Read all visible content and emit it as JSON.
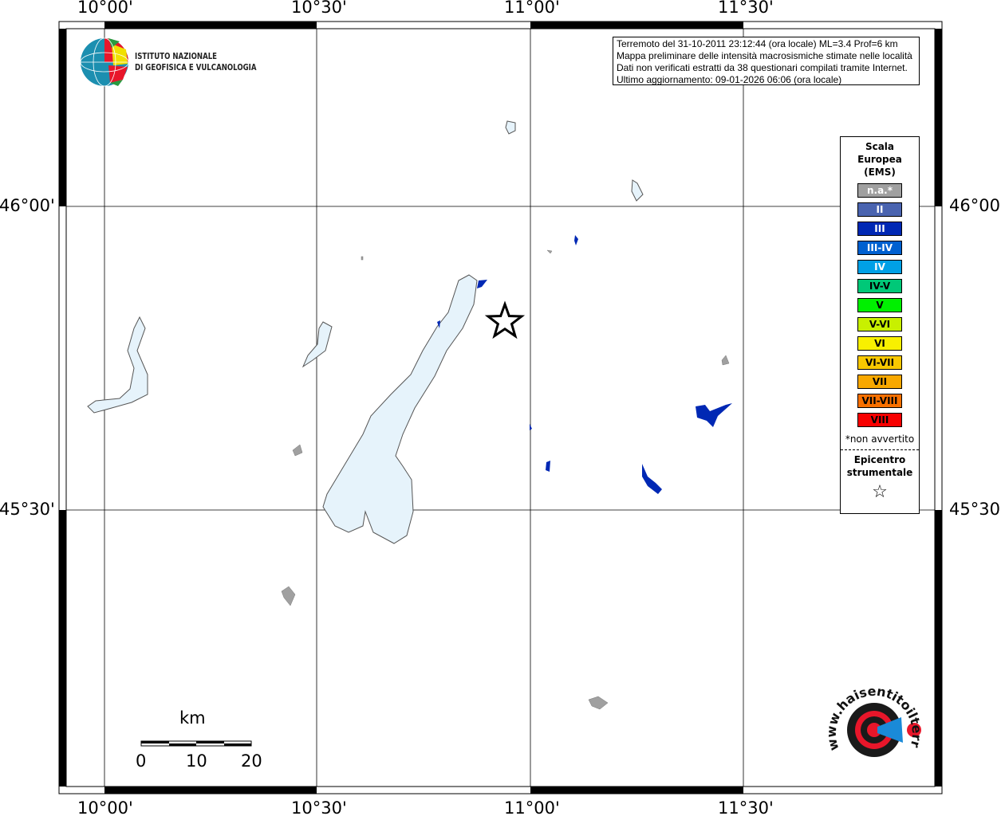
{
  "map": {
    "lon_ticks": [
      "10°00'",
      "10°30'",
      "11°00'",
      "11°30'"
    ],
    "lat_ticks": [
      "46°00'",
      "45°30'"
    ],
    "lake_fill": "#e6f3fb",
    "epicenter": {
      "lon": 10.94,
      "lat": 45.81,
      "icon": "star-icon"
    }
  },
  "info": {
    "lines": [
      "Terremoto del 31-10-2011 23:12:44 (ora locale) ML=3.4 Prof=6 km",
      "Mappa preliminare delle intensità macrosismiche stimate nelle località",
      "Dati non verificati estratti da 38 questionari compilati tramite Internet.",
      "Ultimo aggiornamento: 09-01-2026 06:06 (ora locale)"
    ]
  },
  "legend": {
    "title": [
      "Scala",
      "Europea",
      "(EMS)"
    ],
    "items": [
      {
        "label": "n.a.*",
        "color": "#a0a0a0",
        "text": "#ffffff"
      },
      {
        "label": "II",
        "color": "#4a64b0",
        "text": "#ffffff"
      },
      {
        "label": "III",
        "color": "#0028b4",
        "text": "#ffffff"
      },
      {
        "label": "III-IV",
        "color": "#0060d0",
        "text": "#ffffff"
      },
      {
        "label": "IV",
        "color": "#00a0e6",
        "text": "#ffffff"
      },
      {
        "label": "IV-V",
        "color": "#00c878",
        "text": "#000000"
      },
      {
        "label": "V",
        "color": "#00f000",
        "text": "#000000"
      },
      {
        "label": "V-VI",
        "color": "#c8f000",
        "text": "#000000"
      },
      {
        "label": "VI",
        "color": "#f8f000",
        "text": "#000000"
      },
      {
        "label": "VI-VII",
        "color": "#f8c800",
        "text": "#000000"
      },
      {
        "label": "VII",
        "color": "#f8a800",
        "text": "#000000"
      },
      {
        "label": "VII-VIII",
        "color": "#f87000",
        "text": "#000000"
      },
      {
        "label": "VIII",
        "color": "#f80000",
        "text": "#000000"
      }
    ],
    "note": "*non avvertito",
    "epicenter_label": [
      "Epicentro",
      "strumentale"
    ],
    "epicenter_symbol": "☆"
  },
  "scale": {
    "unit": "km",
    "labels": [
      "0",
      "10",
      "20"
    ]
  },
  "logos": {
    "ingv": [
      "ISTITUTO NAZIONALE",
      "DI GEOFISICA E VULCANOLOGIA"
    ],
    "hsit": "www.haisentitoilterremoto.it"
  }
}
